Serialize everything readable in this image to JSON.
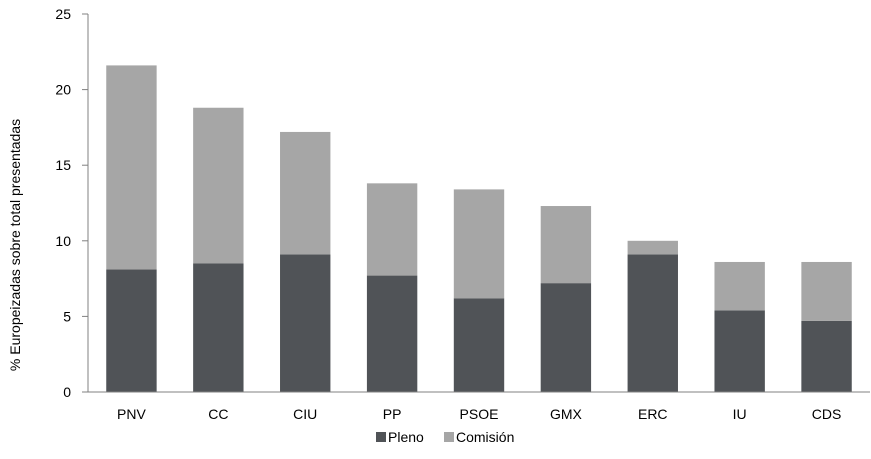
{
  "chart_data": {
    "type": "bar",
    "stacked": true,
    "categories": [
      "PNV",
      "CC",
      "CIU",
      "PP",
      "PSOE",
      "GMX",
      "ERC",
      "IU",
      "CDS"
    ],
    "series": [
      {
        "name": "Pleno",
        "color": "#505357",
        "values": [
          8.1,
          8.5,
          9.1,
          7.7,
          6.2,
          7.2,
          9.1,
          5.4,
          4.7
        ]
      },
      {
        "name": "Comisión",
        "color": "#a6a6a6",
        "values": [
          13.5,
          10.3,
          8.1,
          6.1,
          7.2,
          5.1,
          0.9,
          3.2,
          3.9
        ]
      }
    ],
    "ylabel": "% Europeizadas sobre total presentadas",
    "xlabel": "",
    "title": "",
    "ylim": [
      0,
      25
    ],
    "yticks": [
      0,
      5,
      10,
      15,
      20,
      25
    ],
    "grid": false,
    "legend_position": "bottom"
  }
}
